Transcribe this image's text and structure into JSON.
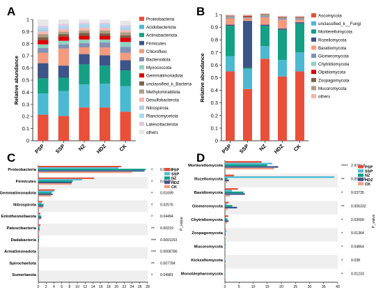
{
  "chart_data": [
    {
      "panel": "A",
      "type": "bar",
      "stacked": true,
      "categories": [
        "PSP",
        "SSP",
        "NZ",
        "HDZ",
        "CK"
      ],
      "ylabel": "Relative abundance",
      "ylim": [
        0,
        1
      ],
      "yticks": [
        "0",
        "0.1",
        "0.2",
        "0.3",
        "0.4",
        "0.5",
        "0.6",
        "0.7",
        "0.8",
        "0.9",
        "1"
      ],
      "legend_position": "right",
      "series": [
        {
          "name": "Proteobacteria",
          "color": "#e8503a",
          "values": [
            0.215,
            0.205,
            0.275,
            0.275,
            0.24
          ]
        },
        {
          "name": "Acidobacteriota",
          "color": "#4cb9d3",
          "values": [
            0.175,
            0.205,
            0.19,
            0.195,
            0.21
          ]
        },
        {
          "name": "Actinobacteriota",
          "color": "#14a085",
          "values": [
            0.125,
            0.11,
            0.165,
            0.15,
            0.13
          ]
        },
        {
          "name": "Firmicutes",
          "color": "#3d5488",
          "values": [
            0.125,
            0.1,
            0.085,
            0.085,
            0.085
          ]
        },
        {
          "name": "Chloroflexi",
          "color": "#f39b7f",
          "values": [
            0.085,
            0.14,
            0.055,
            0.065,
            0.06
          ]
        },
        {
          "name": "Bacteroidota",
          "color": "#8491b4",
          "values": [
            0.04,
            0.035,
            0.035,
            0.04,
            0.05
          ]
        },
        {
          "name": "Myxococcota",
          "color": "#91d1c2",
          "values": [
            0.03,
            0.03,
            0.03,
            0.025,
            0.04
          ]
        },
        {
          "name": "Gemmatimonadota",
          "color": "#dc0000",
          "values": [
            0.035,
            0.035,
            0.03,
            0.03,
            0.035
          ]
        },
        {
          "name": "unclassified_k_Bacteria",
          "color": "#7e6148",
          "values": [
            0.025,
            0.02,
            0.025,
            0.02,
            0.02
          ]
        },
        {
          "name": "Methylomirabilota",
          "color": "#b09c85",
          "values": [
            0.025,
            0.02,
            0.02,
            0.025,
            0.025
          ]
        },
        {
          "name": "Desulfobacterota",
          "color": "#fbb4ae",
          "values": [
            0.02,
            0.02,
            0.02,
            0.02,
            0.015
          ]
        },
        {
          "name": "Nitrospirota",
          "color": "#b3cde3",
          "values": [
            0.02,
            0.01,
            0.015,
            0.015,
            0.015
          ]
        },
        {
          "name": "Planctomycetota",
          "color": "#a6d8f0",
          "values": [
            0.015,
            0.015,
            0.015,
            0.015,
            0.015
          ]
        },
        {
          "name": "Latescibacterota",
          "color": "#decbe4",
          "values": [
            0.015,
            0.02,
            0.015,
            0.015,
            0.015
          ]
        },
        {
          "name": "others",
          "color": "#e6e6e6",
          "values": [
            0.05,
            0.035,
            0.025,
            0.025,
            0.035
          ]
        }
      ]
    },
    {
      "panel": "B",
      "type": "bar",
      "stacked": true,
      "categories": [
        "PSP",
        "SSP",
        "NZ",
        "HDZ",
        "CK"
      ],
      "ylabel": "Relative abundance",
      "ylim": [
        0,
        1
      ],
      "yticks": [
        "0",
        "0.1",
        "0.2",
        "0.3",
        "0.4",
        "0.5",
        "0.6",
        "0.7",
        "0.8",
        "0.9",
        "1"
      ],
      "legend_position": "right",
      "series": [
        {
          "name": "Ascomycota",
          "color": "#e8503a",
          "values": [
            0.55,
            0.41,
            0.65,
            0.51,
            0.55
          ]
        },
        {
          "name": "unclassified_k__Fungi",
          "color": "#4cb9d3",
          "values": [
            0.12,
            0.16,
            0.1,
            0.13,
            0.15
          ]
        },
        {
          "name": "Mortierellomycota",
          "color": "#14a085",
          "values": [
            0.24,
            0.01,
            0.16,
            0.24,
            0.23
          ]
        },
        {
          "name": "Rozellomycota",
          "color": "#3d5488",
          "values": [
            0.01,
            0.37,
            0.01,
            0.01,
            0.01
          ]
        },
        {
          "name": "Basidiomycota",
          "color": "#f39b7f",
          "values": [
            0.05,
            0.02,
            0.06,
            0.07,
            0.02
          ]
        },
        {
          "name": "Glomeromycota",
          "color": "#8491b4",
          "values": [
            0.01,
            0.005,
            0.01,
            0.01,
            0.01
          ]
        },
        {
          "name": "Chytridiomycota",
          "color": "#91d1c2",
          "values": [
            0.005,
            0.005,
            0.005,
            0.005,
            0.005
          ]
        },
        {
          "name": "Olpidiomycota",
          "color": "#dc0000",
          "values": [
            0.003,
            0.006,
            0.002,
            0.003,
            0.004
          ]
        },
        {
          "name": "Zoopagomycota",
          "color": "#7e6148",
          "values": [
            0.002,
            0.004,
            0.003,
            0.002,
            0.001
          ]
        },
        {
          "name": "Mucoromycota",
          "color": "#b09c85",
          "values": [
            0.005,
            0.004,
            0.005,
            0.005,
            0.005
          ]
        },
        {
          "name": "others",
          "color": "#fbb4ae",
          "values": [
            0.005,
            0.006,
            0.005,
            0.005,
            0.005
          ]
        }
      ]
    },
    {
      "panel": "C",
      "type": "bar",
      "orientation": "horizontal",
      "categories": [
        "Proteobacteria",
        "Firmicutes",
        "Gemmatimonadota",
        "Nitrospirota",
        "Entotheonellaeota",
        "Patescibacteria",
        "Dadabacteria",
        "Armatimonadota",
        "Spirochaetota",
        "Sumerlaeota"
      ],
      "xlim": [
        0,
        28
      ],
      "xticks": [
        "0",
        "2",
        "4",
        "6",
        "8",
        "10",
        "12",
        "14",
        "16",
        "18",
        "20",
        "22",
        "24",
        "26",
        "28"
      ],
      "p_value_label": "P_value",
      "p_values": [
        "0.04591",
        "0.01422",
        "0.01699",
        "0.02576",
        "0.04494",
        "0.00219",
        "0.0001153",
        "0.0008786",
        "0.007784",
        "0.04981"
      ],
      "significance": [
        "*",
        "*",
        "*",
        "*",
        "*",
        "**",
        "***",
        "***",
        "**",
        "*"
      ],
      "legend_position": "top-right",
      "series": [
        {
          "name": "PSP",
          "color": "#e64b35",
          "values": [
            21.2,
            14.3,
            4.2,
            1.05,
            0.55,
            0.55,
            0.25,
            0.12,
            0.06,
            0.04
          ]
        },
        {
          "name": "SSP",
          "color": "#4dbbd5",
          "values": [
            20.5,
            11.2,
            4.0,
            0.8,
            0.42,
            0.38,
            0.2,
            0.09,
            0.07,
            0.03
          ]
        },
        {
          "name": "NZ",
          "color": "#00a087",
          "values": [
            27.5,
            8.8,
            3.4,
            1.35,
            0.75,
            0.3,
            0.17,
            0.05,
            0.03,
            0.02
          ]
        },
        {
          "name": "HDZ",
          "color": "#3c5488",
          "values": [
            27.2,
            8.6,
            3.7,
            1.3,
            0.82,
            0.32,
            0.19,
            0.06,
            0.03,
            0.02
          ]
        },
        {
          "name": "CK",
          "color": "#f39b7f",
          "values": [
            24.0,
            8.5,
            3.3,
            1.15,
            0.62,
            0.38,
            0.18,
            0.07,
            0.04,
            0.03
          ]
        }
      ]
    },
    {
      "panel": "D",
      "type": "bar",
      "orientation": "horizontal",
      "categories": [
        "Mortierellomycota",
        "Rozellomycota",
        "Basidiomycota",
        "Glomeromycota",
        "Chytridiomycota",
        "Zoopagomycota",
        "Mucoromycota",
        "Kickxellomycota",
        "Monoblepharomycota"
      ],
      "xlim": [
        0,
        40
      ],
      "xticks": [
        "0",
        "5",
        "10",
        "15",
        "20",
        "25",
        "30",
        "35",
        "40"
      ],
      "p_value_label": "P_value",
      "p_values": [
        "2.974e-5",
        "0.003039",
        "0.03735",
        "0.006332",
        "0.03009",
        "0.01364",
        "0.04864",
        "0.038",
        "0.01233"
      ],
      "significance": [
        "****",
        "**",
        "*",
        "**",
        "*",
        "*",
        "*",
        "*",
        "*"
      ],
      "legend_position": "top-right",
      "series": [
        {
          "name": "PSP",
          "color": "#e64b35",
          "values": [
            13.0,
            3.2,
            4.6,
            1.3,
            1.2,
            0.3,
            0.2,
            0.1,
            0.05
          ]
        },
        {
          "name": "SSP",
          "color": "#4dbbd5",
          "values": [
            16.8,
            38.8,
            2.5,
            0.6,
            0.5,
            0.55,
            0.4,
            0.06,
            0.04
          ]
        },
        {
          "name": "NZ",
          "color": "#00a087",
          "values": [
            15.0,
            0.9,
            6.6,
            2.6,
            0.9,
            0.2,
            0.15,
            0.12,
            0.07
          ]
        },
        {
          "name": "HDZ",
          "color": "#3c5488",
          "values": [
            18.9,
            1.4,
            7.1,
            4.3,
            1.3,
            0.25,
            0.2,
            0.2,
            0.06
          ]
        },
        {
          "name": "CK",
          "color": "#f39b7f",
          "values": [
            17.4,
            0.8,
            1.8,
            1.0,
            0.8,
            0.15,
            0.1,
            0.15,
            0.03
          ]
        }
      ]
    }
  ]
}
